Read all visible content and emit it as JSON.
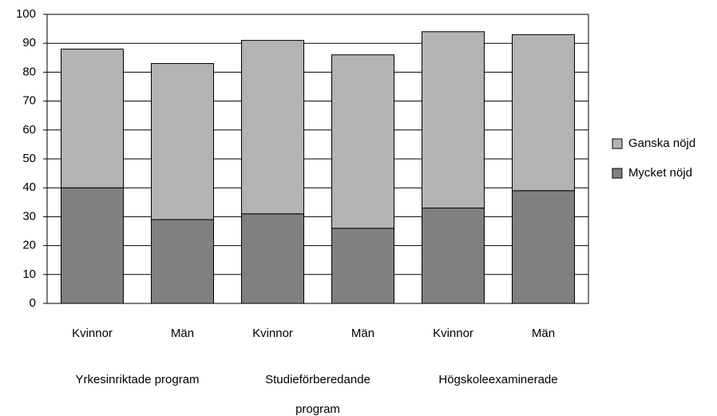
{
  "chart_data": {
    "type": "stacked_bar",
    "categories": [
      "Kvinnor",
      "Män",
      "Kvinnor",
      "Män",
      "Kvinnor",
      "Män"
    ],
    "groups": [
      "Yrkesinriktade program",
      "Studieförberedande program",
      "Högskoleexaminerade"
    ],
    "series": [
      {
        "name": "Mycket nöjd",
        "color": "#808080",
        "values": [
          40,
          29,
          31,
          26,
          33,
          39
        ]
      },
      {
        "name": "Ganska nöjd",
        "color": "#b3b3b3",
        "values": [
          48,
          54,
          60,
          60,
          61,
          54
        ]
      }
    ],
    "ylim": [
      0,
      100
    ],
    "yticks": [
      0,
      10,
      20,
      30,
      40,
      50,
      60,
      70,
      80,
      90,
      100
    ],
    "grid": true,
    "legend": "right"
  }
}
